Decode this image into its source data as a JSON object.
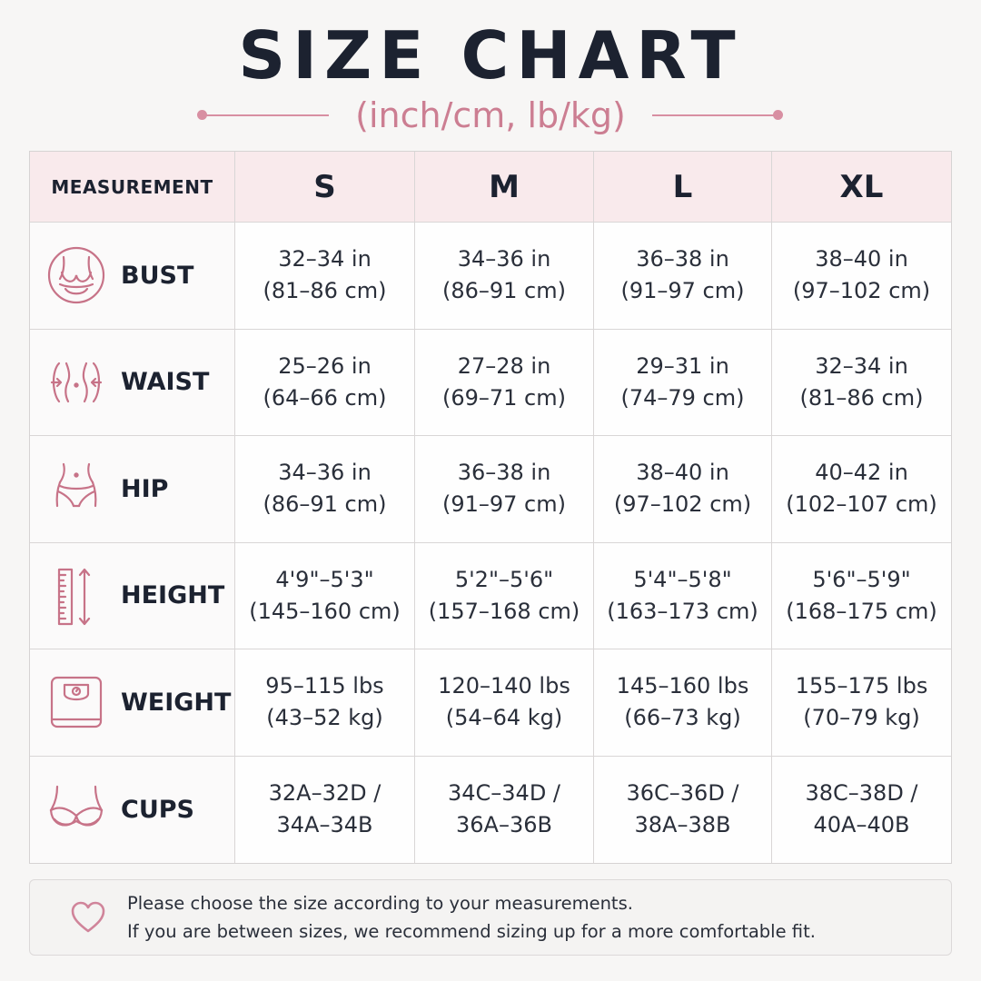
{
  "header": {
    "title": "SIZE CHART",
    "subtitle": "(inch/cm, lb/kg)"
  },
  "colors": {
    "accent": "#cc7e92",
    "header_bg": "#f9eaec",
    "title": "#1c2230"
  },
  "table": {
    "header_label": "MEASUREMENT",
    "sizes": [
      "S",
      "M",
      "L",
      "XL"
    ],
    "rows": [
      {
        "label": "BUST",
        "icon": "bust-icon",
        "values": [
          [
            "32–34 in",
            "(81–86 cm)"
          ],
          [
            "34–36 in",
            "(86–91 cm)"
          ],
          [
            "36–38 in",
            "(91–97 cm)"
          ],
          [
            "38–40 in",
            "(97–102 cm)"
          ]
        ]
      },
      {
        "label": "WAIST",
        "icon": "waist-icon",
        "values": [
          [
            "25–26 in",
            "(64–66 cm)"
          ],
          [
            "27–28 in",
            "(69–71 cm)"
          ],
          [
            "29–31 in",
            "(74–79 cm)"
          ],
          [
            "32–34 in",
            "(81–86 cm)"
          ]
        ]
      },
      {
        "label": "HIP",
        "icon": "hip-icon",
        "values": [
          [
            "34–36 in",
            "(86–91 cm)"
          ],
          [
            "36–38 in",
            "(91–97 cm)"
          ],
          [
            "38–40 in",
            "(97–102 cm)"
          ],
          [
            "40–42 in",
            "(102–107 cm)"
          ]
        ]
      },
      {
        "label": "HEIGHT",
        "icon": "height-ruler-icon",
        "values": [
          [
            "4'9\"–5'3\"",
            "(145–160 cm)"
          ],
          [
            "5'2\"–5'6\"",
            "(157–168 cm)"
          ],
          [
            "5'4\"–5'8\"",
            "(163–173 cm)"
          ],
          [
            "5'6\"–5'9\"",
            "(168–175 cm)"
          ]
        ]
      },
      {
        "label": "WEIGHT",
        "icon": "scale-icon",
        "values": [
          [
            "95–115 lbs",
            "(43–52 kg)"
          ],
          [
            "120–140 lbs",
            "(54–64 kg)"
          ],
          [
            "145–160 lbs",
            "(66–73 kg)"
          ],
          [
            "155–175 lbs",
            "(70–79 kg)"
          ]
        ]
      },
      {
        "label": "CUPS",
        "icon": "bra-icon",
        "values": [
          [
            "32A–32D /",
            "34A–34B"
          ],
          [
            "34C–34D /",
            "36A–36B"
          ],
          [
            "36C–36D /",
            "38A–38B"
          ],
          [
            "38C–38D /",
            "40A–40B"
          ]
        ]
      }
    ]
  },
  "note": {
    "icon": "heart-icon",
    "line1": "Please choose the size according to your measurements.",
    "line2": "If you are between sizes, we recommend sizing up for a more comfortable fit."
  }
}
